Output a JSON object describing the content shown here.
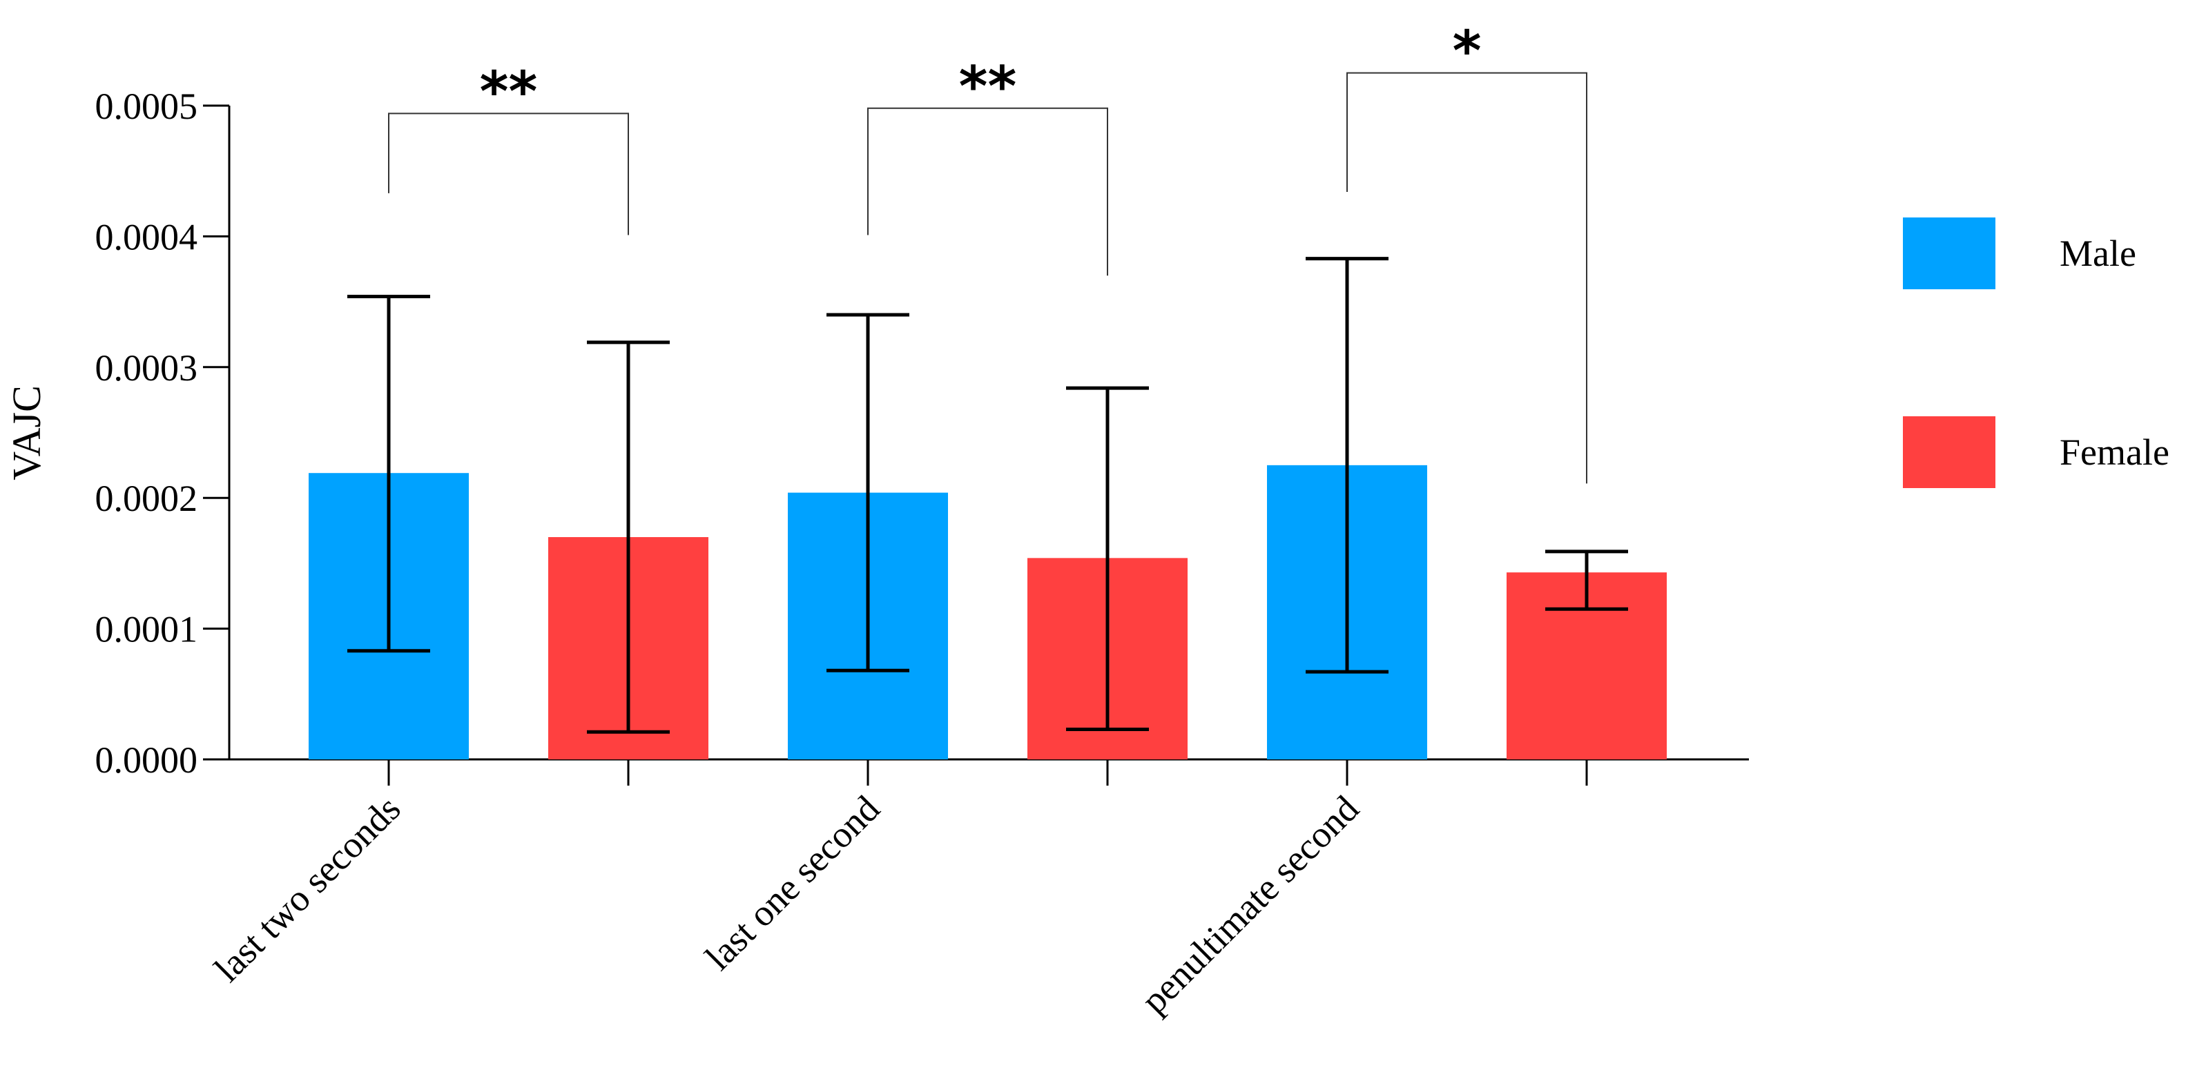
{
  "chart_data": {
    "type": "bar",
    "title": "",
    "xlabel": "",
    "ylabel": "VAJC",
    "ylim": [
      0,
      0.0005
    ],
    "yticks": [
      "0.0000",
      "0.0001",
      "0.0002",
      "0.0003",
      "0.0004",
      "0.0005"
    ],
    "ytick_values": [
      0,
      0.0001,
      0.0002,
      0.0003,
      0.0004,
      0.0005
    ],
    "categories": [
      "last two seconds",
      "last one second",
      "penultimate second"
    ],
    "series": [
      {
        "name": "Male",
        "color": "#00A2FF",
        "values": [
          0.000219,
          0.000204,
          0.000225
        ],
        "error_low": [
          8.3e-05,
          6.8e-05,
          6.7e-05
        ],
        "error_high": [
          0.000354,
          0.00034,
          0.000383
        ]
      },
      {
        "name": "Female",
        "color": "#FF4040",
        "values": [
          0.00017,
          0.000154,
          0.000143
        ],
        "error_low": [
          2.1e-05,
          2.3e-05,
          0.000115
        ],
        "error_high": [
          0.000319,
          0.000284,
          0.000159
        ]
      }
    ],
    "significance": [
      {
        "category_index": 0,
        "label": "**",
        "bracket_value": 0.000494,
        "left_start": 0.000433,
        "right_start": 0.000401
      },
      {
        "category_index": 1,
        "label": "**",
        "bracket_value": 0.000498,
        "left_start": 0.000401,
        "right_start": 0.00037
      },
      {
        "category_index": 2,
        "label": "*",
        "bracket_value": 0.000525,
        "left_start": 0.000434,
        "right_start": 0.000211
      }
    ],
    "legend": {
      "position": "right",
      "entries": [
        "Male",
        "Female"
      ]
    }
  }
}
